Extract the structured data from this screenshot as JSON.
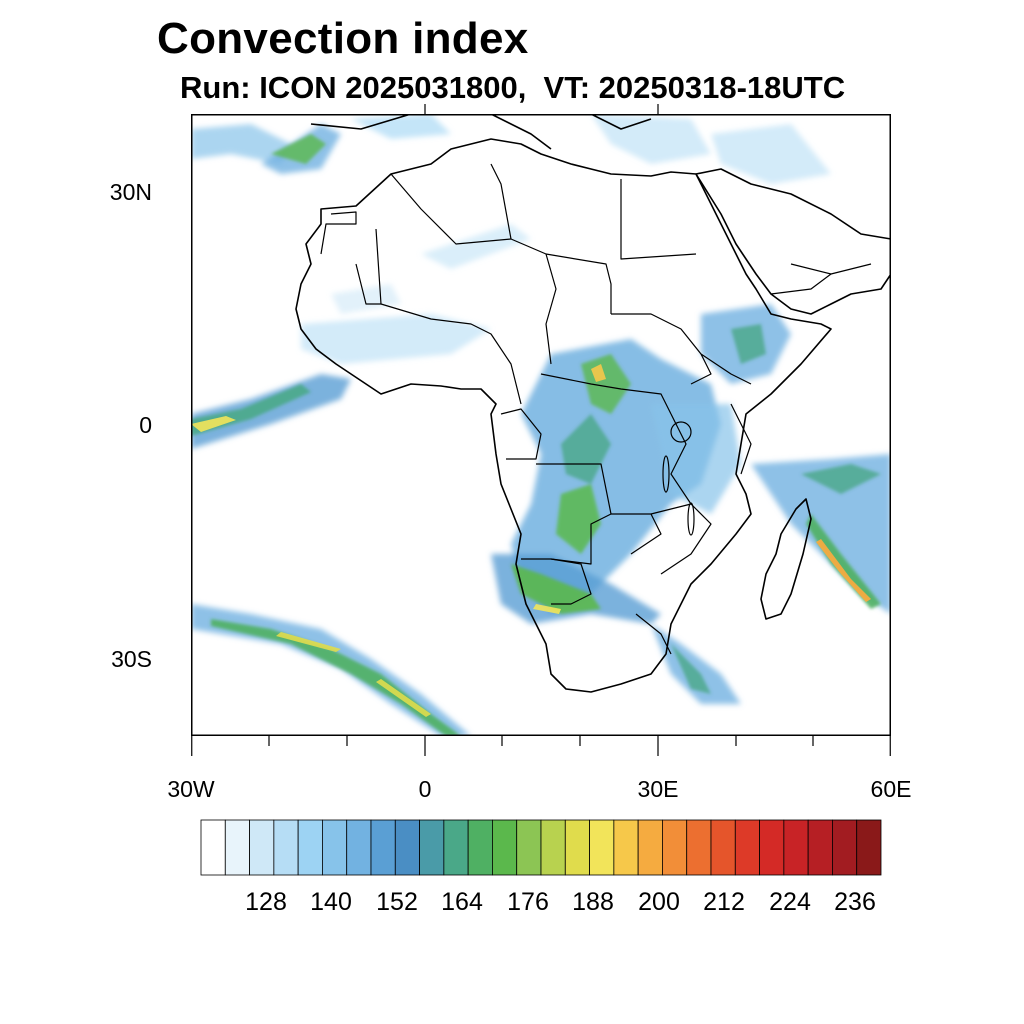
{
  "header": {
    "title": "Convection index",
    "subtitle": "Run: ICON 2025031800,  VT: 20250318-18UTC"
  },
  "axes": {
    "lat_labels": [
      "30N",
      "0",
      "30S"
    ],
    "lon_labels": [
      "30W",
      "0",
      "30E",
      "60E"
    ]
  },
  "colorbar": {
    "colors": [
      "#ffffff",
      "#e8f4fb",
      "#cfe8f7",
      "#b6ddf5",
      "#9dd3f3",
      "#87c3ea",
      "#72b2e1",
      "#5a9fd4",
      "#4a8ec4",
      "#4a9ba8",
      "#4aa888",
      "#4fb063",
      "#5bb84c",
      "#8cc554",
      "#b8d24f",
      "#e0dc4c",
      "#f2e45a",
      "#f6c84a",
      "#f5ab40",
      "#f28e38",
      "#ec6f30",
      "#e5552b",
      "#dd3a28",
      "#d42a26",
      "#c82326",
      "#b61f24",
      "#a21c21",
      "#8a1919"
    ],
    "labels": [
      "128",
      "140",
      "152",
      "164",
      "176",
      "188",
      "200",
      "212",
      "224",
      "236"
    ]
  },
  "map": {
    "region": "Africa",
    "lon_range": [
      -30,
      60
    ],
    "lat_range": [
      -40,
      40
    ]
  }
}
